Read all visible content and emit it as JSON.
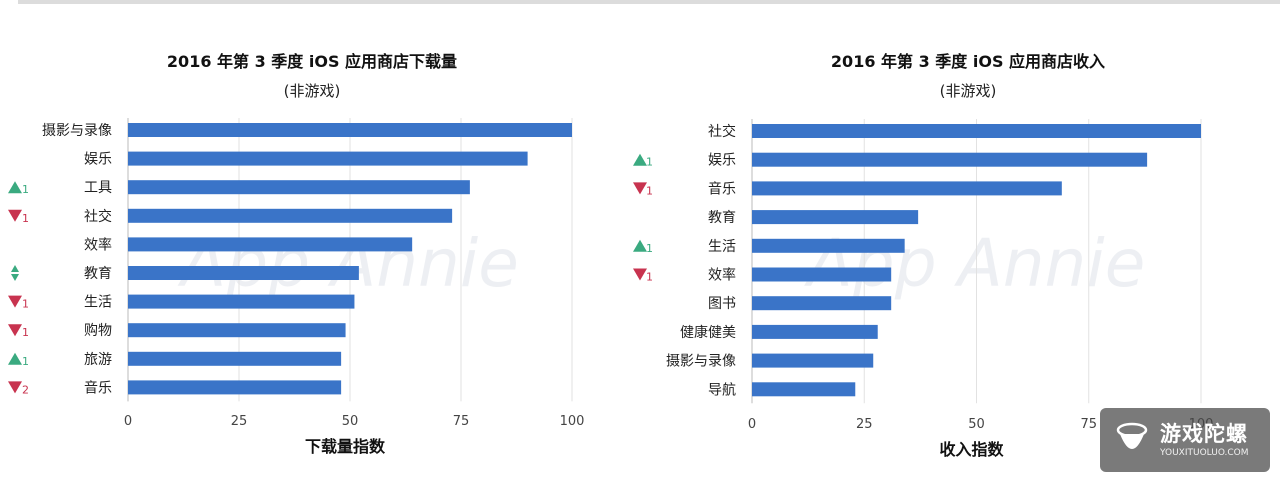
{
  "colors": {
    "bar": "#3a74c8",
    "up": "#3aaa80",
    "down": "#c8334f",
    "grid": "#e2e2e2",
    "axis": "#bbbbbb"
  },
  "chart_data": [
    {
      "type": "bar",
      "orientation": "horizontal",
      "title": "2016 年第 3 季度 iOS 应用商店下载量",
      "subtitle": "(非游戏)",
      "xlabel": "下载量指数",
      "xlim": [
        0,
        100
      ],
      "xticks": [
        0,
        25,
        50,
        75,
        100
      ],
      "grid": true,
      "watermark": "App Annie",
      "categories": [
        "摄影与录像",
        "娱乐",
        "工具",
        "社交",
        "效率",
        "教育",
        "生活",
        "购物",
        "旅游",
        "音乐"
      ],
      "values": [
        100,
        90,
        77,
        73,
        64,
        52,
        51,
        49,
        48,
        48
      ],
      "rank_change": [
        {
          "dir": "",
          "n": ""
        },
        {
          "dir": "",
          "n": ""
        },
        {
          "dir": "up",
          "n": "1"
        },
        {
          "dir": "down",
          "n": "1"
        },
        {
          "dir": "",
          "n": ""
        },
        {
          "dir": "flat",
          "n": ""
        },
        {
          "dir": "down",
          "n": "1"
        },
        {
          "dir": "down",
          "n": "1"
        },
        {
          "dir": "up",
          "n": "1"
        },
        {
          "dir": "down",
          "n": "2"
        }
      ]
    },
    {
      "type": "bar",
      "orientation": "horizontal",
      "title": "2016 年第 3 季度 iOS 应用商店收入",
      "subtitle": "(非游戏)",
      "xlabel": "收入指数",
      "xlim": [
        0,
        100
      ],
      "xticks": [
        0,
        25,
        50,
        75,
        100
      ],
      "grid": true,
      "watermark": "App Annie",
      "categories": [
        "社交",
        "娱乐",
        "音乐",
        "教育",
        "生活",
        "效率",
        "图书",
        "健康健美",
        "摄影与录像",
        "导航"
      ],
      "values": [
        100,
        88,
        69,
        37,
        34,
        31,
        31,
        28,
        27,
        23
      ],
      "rank_change": [
        {
          "dir": "",
          "n": ""
        },
        {
          "dir": "up",
          "n": "1"
        },
        {
          "dir": "down",
          "n": "1"
        },
        {
          "dir": "",
          "n": ""
        },
        {
          "dir": "up",
          "n": "1"
        },
        {
          "dir": "down",
          "n": "1"
        },
        {
          "dir": "",
          "n": ""
        },
        {
          "dir": "",
          "n": ""
        },
        {
          "dir": "",
          "n": ""
        },
        {
          "dir": "",
          "n": ""
        }
      ]
    }
  ],
  "brand_badge": {
    "name": "游戏陀螺",
    "url": "YOUXITUOLUO.COM"
  }
}
